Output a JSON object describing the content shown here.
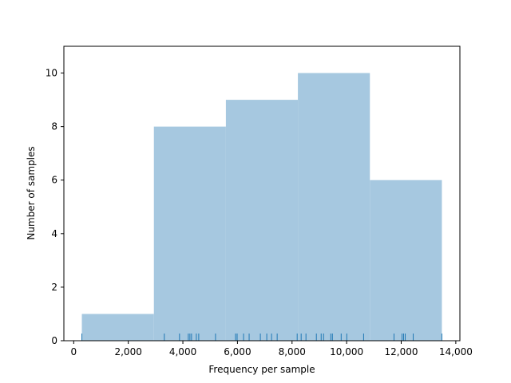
{
  "chart_data": {
    "type": "histogram",
    "xlabel": "Frequency per sample",
    "ylabel": "Number of samples",
    "bins": [
      299,
      2938,
      5576,
      8214,
      10852,
      13490
    ],
    "counts": [
      1,
      8,
      9,
      10,
      6
    ],
    "color": "#a6c8e0",
    "rug": [
      299,
      3320,
      3877,
      4199,
      4258,
      4317,
      4493,
      4581,
      5196,
      5930,
      5988,
      6223,
      6428,
      6839,
      7074,
      7249,
      7455,
      8188,
      8334,
      8510,
      8891,
      9067,
      9155,
      9419,
      9478,
      9800,
      10006,
      10622,
      11736,
      12030,
      12088,
      12147,
      12440,
      13490
    ],
    "rug_color": "#1f77b4",
    "xlim": [
      -360,
      14150
    ],
    "ylim": [
      0,
      11
    ],
    "xticks": [
      0,
      {
        "value": 2000,
        "label": "2,000"
      },
      {
        "value": 4000,
        "label": "4,000"
      },
      {
        "value": 6000,
        "label": "6,000"
      },
      {
        "value": 8000,
        "label": "8,000"
      },
      {
        "value": 10000,
        "label": "10,000"
      },
      {
        "value": 12000,
        "label": "12,000"
      },
      {
        "value": 14000,
        "label": "14,000"
      }
    ],
    "yticks": [
      0,
      2,
      4,
      6,
      8,
      10
    ]
  }
}
